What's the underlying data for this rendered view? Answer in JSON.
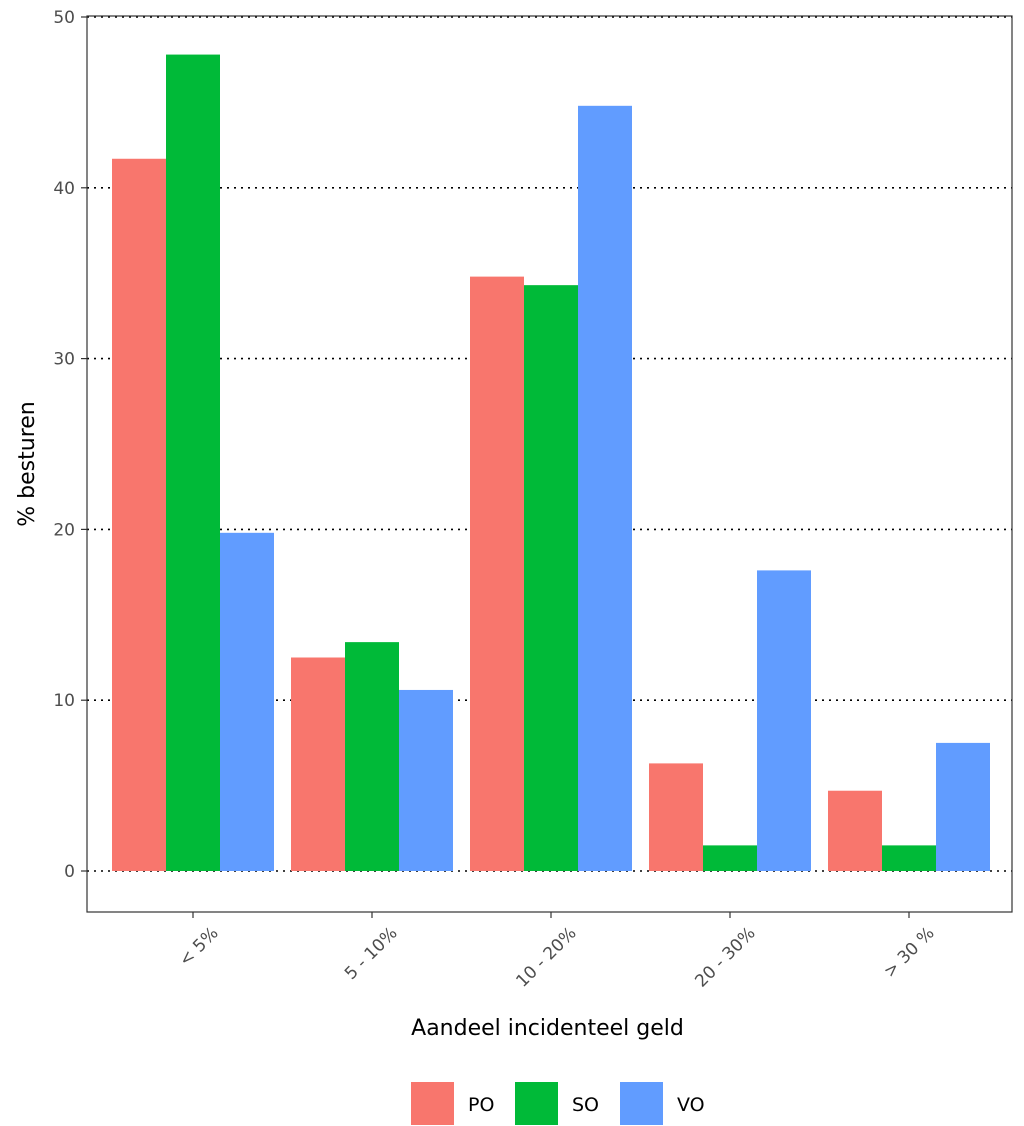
{
  "chart_data": {
    "type": "bar",
    "title": "",
    "xlabel": "Aandeel incidenteel geld",
    "ylabel": "% besturen",
    "categories": [
      "< 5%",
      "5 - 10%",
      "10 - 20%",
      "20 - 30%",
      "> 30 %"
    ],
    "series": [
      {
        "name": "PO",
        "color": "#F8766D",
        "values": [
          41.7,
          12.5,
          34.8,
          6.3,
          4.7
        ]
      },
      {
        "name": "SO",
        "color": "#00BA38",
        "values": [
          47.8,
          13.4,
          34.3,
          1.5,
          1.5
        ]
      },
      {
        "name": "VO",
        "color": "#619CFF",
        "values": [
          19.8,
          10.6,
          44.8,
          17.6,
          7.5
        ]
      }
    ],
    "ylim": [
      0,
      50
    ],
    "yticks": [
      0,
      10,
      20,
      30,
      40,
      50
    ],
    "grid": "horizontal dotted",
    "legend_position": "bottom"
  }
}
